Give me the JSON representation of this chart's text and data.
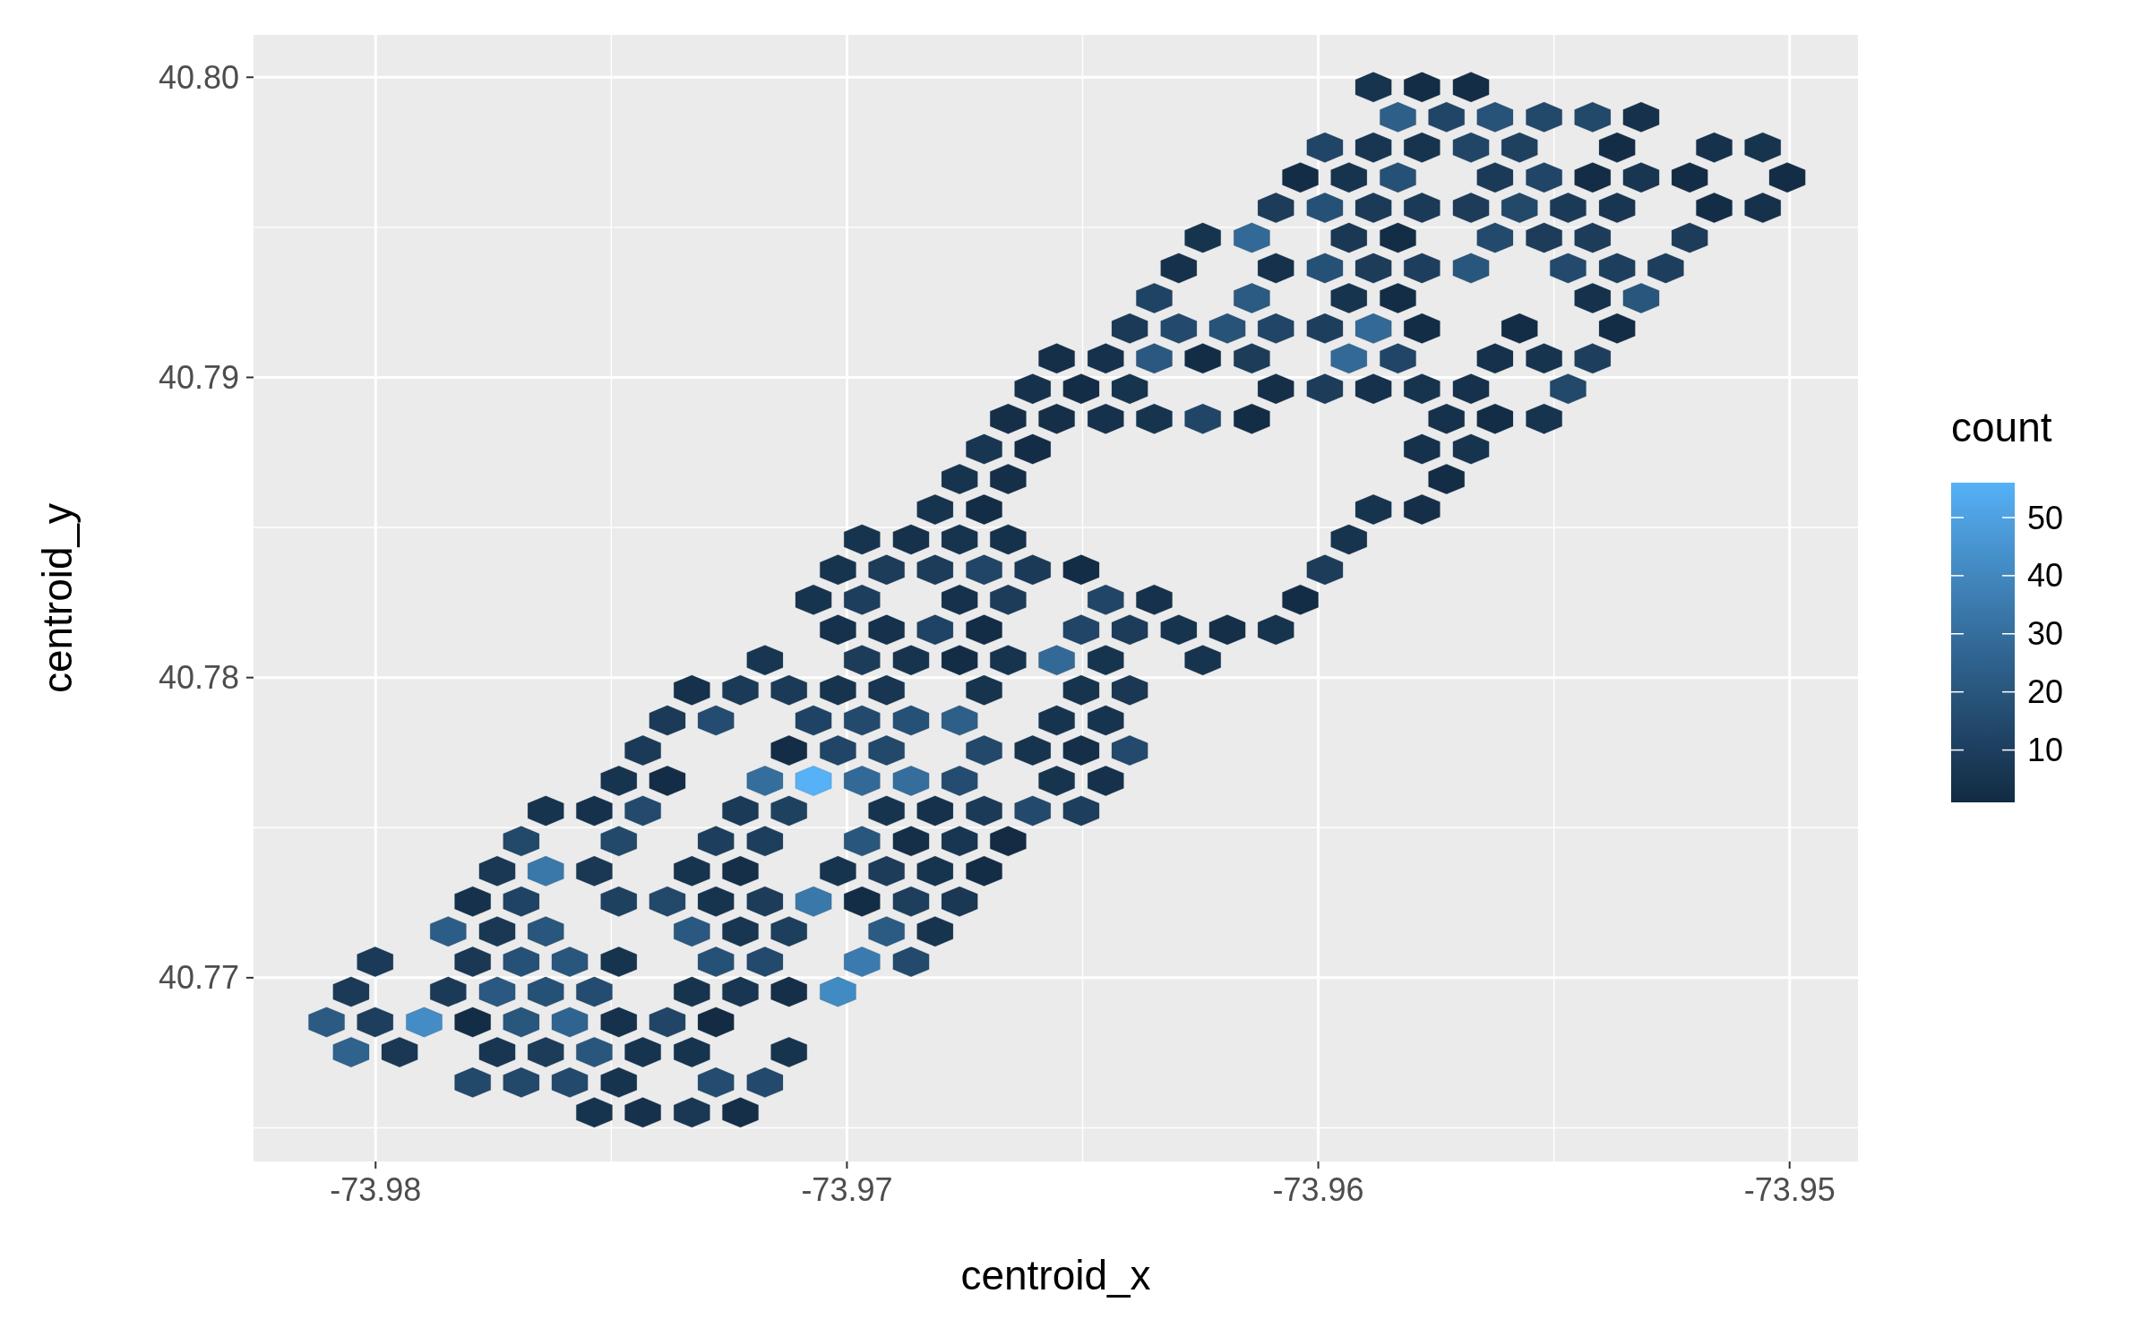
{
  "chart_data": {
    "type": "scatter",
    "xlabel": "centroid_x",
    "ylabel": "centroid_y",
    "clabel": "count",
    "xlim": [
      -73.98259,
      -73.94855
    ],
    "ylim": [
      40.76388,
      40.80141
    ],
    "xticks": [
      -73.98,
      -73.97,
      -73.96,
      -73.95
    ],
    "yticks": [
      40.77,
      40.78,
      40.79,
      {
        "value": 40.8,
        "label": "40.80"
      }
    ],
    "clim": [
      1,
      56
    ],
    "cticks": [
      10,
      20,
      30,
      40,
      50
    ],
    "grid": true,
    "x": [
      -73.97536,
      -73.97433,
      -73.97329,
      -73.97226,
      -73.97794,
      -73.97691,
      -73.97588,
      -73.97484,
      -73.97278,
      -73.97174,
      -73.98052,
      -73.97949,
      -73.97742,
      -73.97639,
      -73.97536,
      -73.97433,
      -73.97329,
      -73.97123,
      -73.98104,
      -73.98001,
      -73.97897,
      -73.97794,
      -73.97691,
      -73.97588,
      -73.97484,
      -73.97381,
      -73.97278,
      -73.98052,
      -73.97846,
      -73.97742,
      -73.97639,
      -73.97536,
      -73.97329,
      -73.97226,
      -73.97123,
      -73.97019,
      -73.98001,
      -73.97794,
      -73.97691,
      -73.97588,
      -73.97484,
      -73.97278,
      -73.97174,
      -73.96968,
      -73.96864,
      -73.97846,
      -73.97742,
      -73.97639,
      -73.97329,
      -73.97226,
      -73.97123,
      -73.96916,
      -73.96813,
      -73.97794,
      -73.97691,
      -73.97484,
      -73.97381,
      -73.97278,
      -73.97174,
      -73.97071,
      -73.96968,
      -73.96864,
      -73.96761,
      -73.97742,
      -73.97639,
      -73.97536,
      -73.97329,
      -73.97226,
      -73.97019,
      -73.96916,
      -73.96813,
      -73.96709,
      -73.97691,
      -73.97484,
      -73.97278,
      -73.97174,
      -73.96968,
      -73.96864,
      -73.96761,
      -73.96658,
      -73.97639,
      -73.97536,
      -73.97433,
      -73.97226,
      -73.97123,
      -73.96916,
      -73.96813,
      -73.96709,
      -73.96606,
      -73.96503,
      -73.97484,
      -73.97381,
      -73.97174,
      -73.97071,
      -73.96968,
      -73.96864,
      -73.96761,
      -73.96555,
      -73.96451,
      -73.97433,
      -73.97123,
      -73.97019,
      -73.96916,
      -73.96709,
      -73.96606,
      -73.96503,
      -73.964,
      -73.97381,
      -73.97278,
      -73.97071,
      -73.96968,
      -73.96864,
      -73.96761,
      -73.96555,
      -73.96451,
      -73.97329,
      -73.97226,
      -73.97123,
      -73.97019,
      -73.96916,
      -73.96709,
      -73.96503,
      -73.964,
      -73.97174,
      -73.96968,
      -73.96864,
      -73.96761,
      -73.96658,
      -73.96555,
      -73.96451,
      -73.96245,
      -73.97019,
      -73.96916,
      -73.96813,
      -73.96709,
      -73.96503,
      -73.964,
      -73.96296,
      -73.96193,
      -73.9609,
      -73.97071,
      -73.96968,
      -73.96761,
      -73.96658,
      -73.96451,
      -73.96348,
      -73.96038,
      -73.97019,
      -73.96916,
      -73.96813,
      -73.96709,
      -73.96606,
      -73.96503,
      -73.95986,
      -73.96968,
      -73.96864,
      -73.96761,
      -73.96658,
      -73.95935,
      -73.96813,
      -73.96709,
      -73.95883,
      -73.9578,
      -73.96761,
      -73.96658,
      -73.95728,
      -73.96709,
      -73.96606,
      -73.9578,
      -73.95676,
      -73.96658,
      -73.96555,
      -73.96451,
      -73.96348,
      -73.96245,
      -73.96141,
      -73.95728,
      -73.95625,
      -73.95521,
      -73.96606,
      -73.96503,
      -73.964,
      -73.9609,
      -73.95986,
      -73.95883,
      -73.9578,
      -73.95676,
      -73.9547,
      -73.96555,
      -73.96451,
      -73.96348,
      -73.96245,
      -73.96141,
      -73.95935,
      -73.95831,
      -73.95625,
      -73.95521,
      -73.95418,
      -73.964,
      -73.96296,
      -73.96193,
      -73.9609,
      -73.95986,
      -73.95883,
      -73.9578,
      -73.95573,
      -73.95366,
      -73.96348,
      -73.96141,
      -73.95935,
      -73.95831,
      -73.95418,
      -73.95315,
      -73.96296,
      -73.9609,
      -73.95986,
      -73.95883,
      -73.9578,
      -73.95676,
      -73.9547,
      -73.95366,
      -73.95263,
      -73.96245,
      -73.96141,
      -73.95935,
      -73.95831,
      -73.95625,
      -73.95521,
      -73.95418,
      -73.95212,
      -73.9609,
      -73.95986,
      -73.95883,
      -73.9578,
      -73.95676,
      -73.95573,
      -73.9547,
      -73.95366,
      -73.9516,
      -73.95057,
      -73.96038,
      -73.95935,
      -73.95831,
      -73.95625,
      -73.95521,
      -73.95418,
      -73.95315,
      -73.95212,
      -73.95005,
      -73.95986,
      -73.95883,
      -73.9578,
      -73.95676,
      -73.95573,
      -73.95366,
      -73.9516,
      -73.95057,
      -73.95831,
      -73.95728,
      -73.95625,
      -73.95521,
      -73.95418,
      -73.95315,
      -73.95883,
      -73.9578,
      -73.95676
    ],
    "values": [
      40.76551,
      40.76551,
      40.76551,
      40.76551,
      40.76651,
      40.76651,
      40.76651,
      40.76651,
      40.76651,
      40.76651,
      40.76752,
      40.76752,
      40.76752,
      40.76752,
      40.76752,
      40.76752,
      40.76752,
      40.76752,
      40.76852,
      40.76852,
      40.76852,
      40.76852,
      40.76852,
      40.76852,
      40.76852,
      40.76852,
      40.76852,
      40.76953,
      40.76953,
      40.76953,
      40.76953,
      40.76953,
      40.76953,
      40.76953,
      40.76953,
      40.76953,
      40.77053,
      40.77053,
      40.77053,
      40.77053,
      40.77053,
      40.77053,
      40.77053,
      40.77053,
      40.77053,
      40.77154,
      40.77154,
      40.77154,
      40.77154,
      40.77154,
      40.77154,
      40.77154,
      40.77154,
      40.77254,
      40.77254,
      40.77254,
      40.77254,
      40.77254,
      40.77254,
      40.77254,
      40.77254,
      40.77254,
      40.77254,
      40.77355,
      40.77355,
      40.77355,
      40.77355,
      40.77355,
      40.77355,
      40.77355,
      40.77355,
      40.77355,
      40.77455,
      40.77455,
      40.77455,
      40.77455,
      40.77455,
      40.77455,
      40.77455,
      40.77455,
      40.77556,
      40.77556,
      40.77556,
      40.77556,
      40.77556,
      40.77556,
      40.77556,
      40.77556,
      40.77556,
      40.77556,
      40.77656,
      40.77656,
      40.77656,
      40.77656,
      40.77656,
      40.77656,
      40.77656,
      40.77656,
      40.77656,
      40.77757,
      40.77757,
      40.77757,
      40.77757,
      40.77757,
      40.77757,
      40.77757,
      40.77757,
      40.77857,
      40.77857,
      40.77857,
      40.77857,
      40.77857,
      40.77857,
      40.77857,
      40.77857,
      40.77958,
      40.77958,
      40.77958,
      40.77958,
      40.77958,
      40.77958,
      40.77958,
      40.77958,
      40.78058,
      40.78058,
      40.78058,
      40.78058,
      40.78058,
      40.78058,
      40.78058,
      40.78058,
      40.78159,
      40.78159,
      40.78159,
      40.78159,
      40.78159,
      40.78159,
      40.78159,
      40.78159,
      40.78159,
      40.78259,
      40.78259,
      40.78259,
      40.78259,
      40.78259,
      40.78259,
      40.78259,
      40.78359,
      40.78359,
      40.78359,
      40.78359,
      40.78359,
      40.78359,
      40.78359,
      40.7846,
      40.7846,
      40.7846,
      40.7846,
      40.7846,
      40.7856,
      40.7856,
      40.7856,
      40.7856,
      40.78661,
      40.78661,
      40.78661,
      40.78761,
      40.78761,
      40.78761,
      40.78761,
      40.78862,
      40.78862,
      40.78862,
      40.78862,
      40.78862,
      40.78862,
      40.78862,
      40.78862,
      40.78862,
      40.78962,
      40.78962,
      40.78962,
      40.78962,
      40.78962,
      40.78962,
      40.78962,
      40.78962,
      40.78962,
      40.79063,
      40.79063,
      40.79063,
      40.79063,
      40.79063,
      40.79063,
      40.79063,
      40.79063,
      40.79063,
      40.79063,
      40.79163,
      40.79163,
      40.79163,
      40.79163,
      40.79163,
      40.79163,
      40.79163,
      40.79163,
      40.79163,
      40.79264,
      40.79264,
      40.79264,
      40.79264,
      40.79264,
      40.79264,
      40.79364,
      40.79364,
      40.79364,
      40.79364,
      40.79364,
      40.79364,
      40.79364,
      40.79364,
      40.79364,
      40.79465,
      40.79465,
      40.79465,
      40.79465,
      40.79465,
      40.79465,
      40.79465,
      40.79465,
      40.79565,
      40.79565,
      40.79565,
      40.79565,
      40.79565,
      40.79565,
      40.79565,
      40.79565,
      40.79565,
      40.79565,
      40.79666,
      40.79666,
      40.79666,
      40.79666,
      40.79666,
      40.79666,
      40.79666,
      40.79666,
      40.79666,
      40.79766,
      40.79766,
      40.79766,
      40.79766,
      40.79766,
      40.79766,
      40.79766,
      40.79766,
      40.79867,
      40.79867,
      40.79867,
      40.79867,
      40.79867,
      40.79867,
      40.79967,
      40.79967,
      40.79967
    ],
    "cvalues": [
      5,
      4,
      7,
      3,
      14,
      14,
      15,
      5,
      16,
      15,
      25,
      7,
      6,
      9,
      20,
      5,
      5,
      5,
      22,
      10,
      42,
      2,
      20,
      26,
      4,
      13,
      1,
      8,
      8,
      21,
      18,
      16,
      5,
      6,
      3,
      41,
      8,
      7,
      18,
      20,
      5,
      18,
      15,
      35,
      15,
      23,
      7,
      20,
      21,
      6,
      10,
      22,
      5,
      4,
      12,
      11,
      14,
      5,
      9,
      34,
      2,
      10,
      7,
      7,
      34,
      7,
      5,
      3,
      5,
      9,
      5,
      2,
      14,
      14,
      10,
      10,
      20,
      3,
      6,
      1,
      5,
      4,
      15,
      8,
      11,
      5,
      4,
      8,
      15,
      10,
      5,
      2,
      30,
      56,
      28,
      30,
      16,
      5,
      4,
      8,
      2,
      13,
      14,
      14,
      5,
      3,
      15,
      8,
      16,
      12,
      15,
      18,
      24,
      5,
      5,
      4,
      8,
      8,
      5,
      6,
      5,
      5,
      7,
      6,
      9,
      5,
      2,
      5,
      28,
      5,
      5,
      4,
      4,
      12,
      2,
      13,
      9,
      5,
      3,
      5,
      5,
      10,
      4,
      9,
      13,
      4,
      2,
      5,
      9,
      9,
      13,
      8,
      2,
      9,
      5,
      4,
      5,
      4,
      5,
      5,
      2,
      5,
      3,
      5,
      3,
      2,
      6,
      2,
      4,
      5,
      3,
      3,
      4,
      5,
      13,
      2,
      4,
      2,
      5,
      4,
      2,
      5,
      3,
      9,
      4,
      5,
      4,
      14,
      3,
      4,
      21,
      2,
      9,
      28,
      13,
      4,
      5,
      10,
      8,
      15,
      19,
      13,
      10,
      28,
      2,
      2,
      2,
      12,
      22,
      5,
      2,
      4,
      20,
      4,
      4,
      18,
      9,
      10,
      20,
      15,
      10,
      10,
      5,
      28,
      7,
      2,
      15,
      9,
      9,
      9,
      9,
      18,
      8,
      8,
      9,
      14,
      8,
      6,
      2,
      4,
      2,
      5,
      18,
      8,
      13,
      2,
      6,
      2,
      2,
      13,
      6,
      5,
      13,
      11,
      2,
      4,
      5,
      24,
      13,
      19,
      14,
      14,
      4,
      5,
      2,
      2
    ]
  }
}
